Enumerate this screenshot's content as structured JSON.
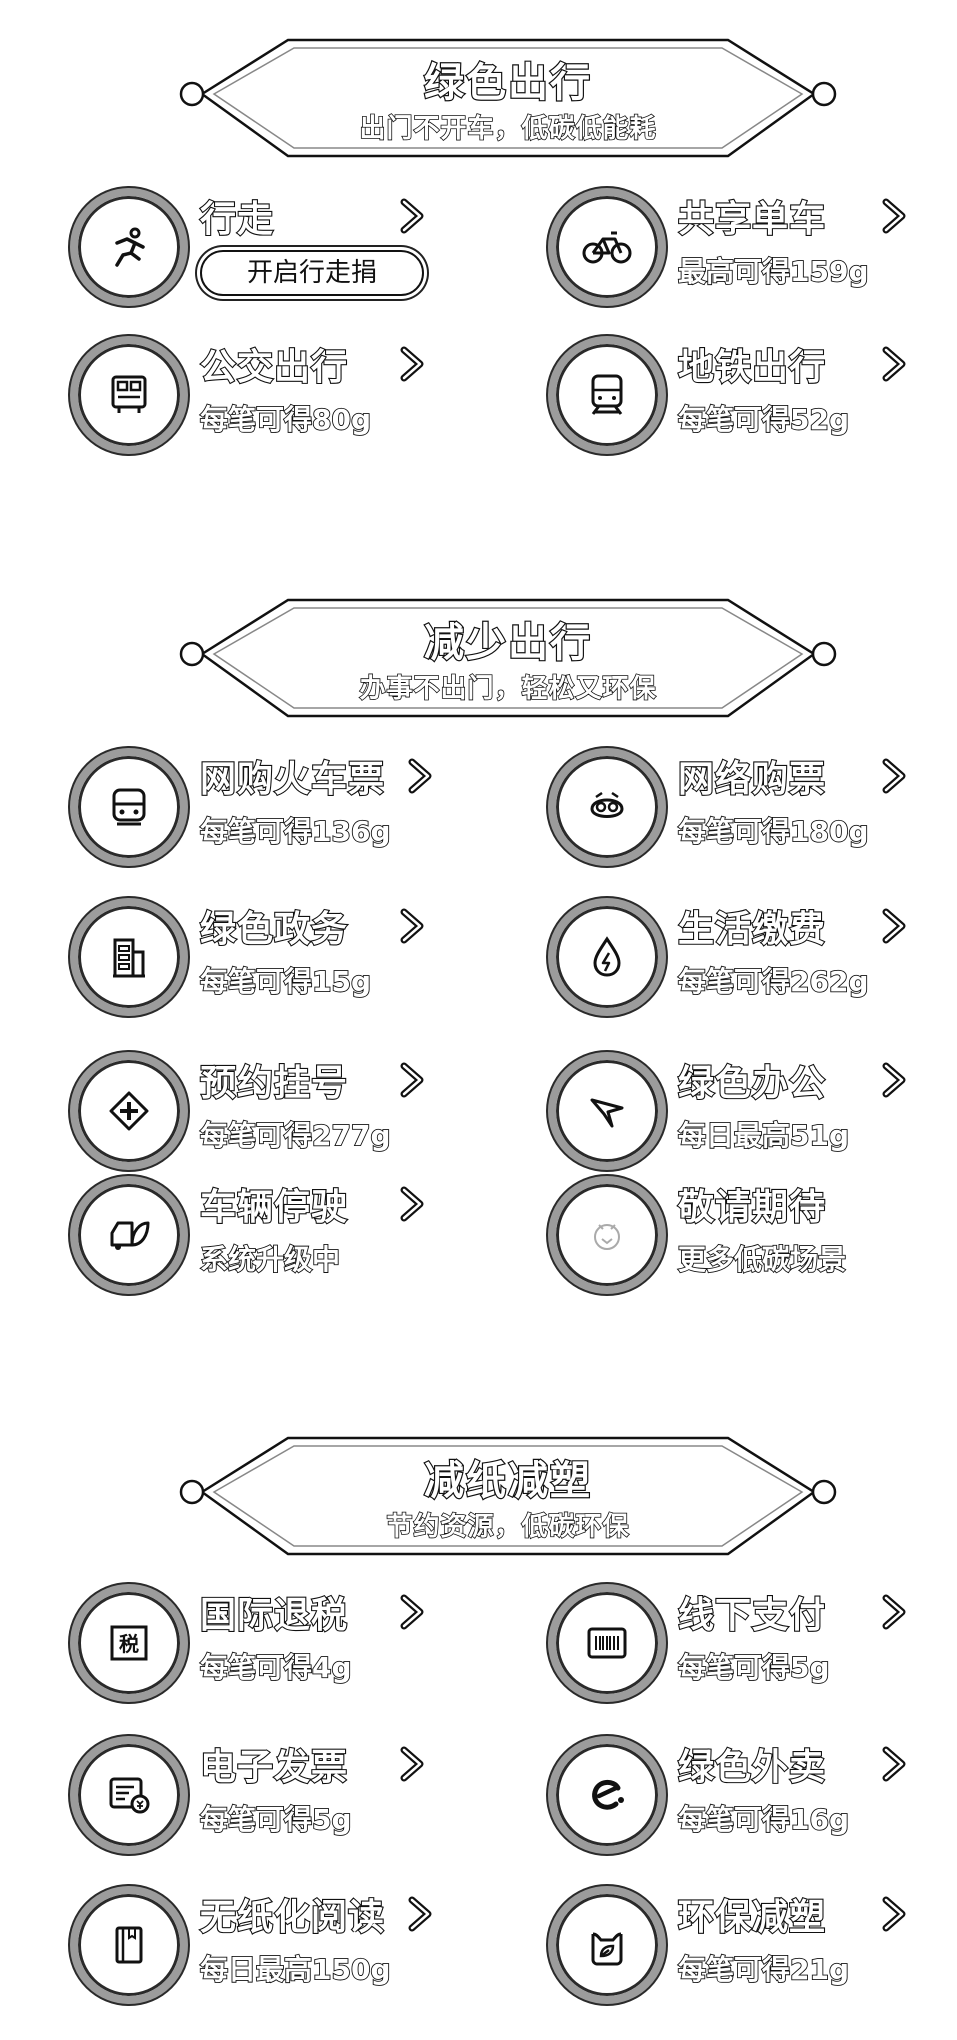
{
  "sections": [
    {
      "title": "绿色出行",
      "subtitle": "出门不开车，低碳低能耗",
      "items": [
        {
          "name": "行走",
          "sub": "",
          "button": "开启行走捐",
          "icon": "running-icon",
          "chevron": true
        },
        {
          "name": "共享单车",
          "sub": "最高可得159g",
          "icon": "bicycle-icon",
          "chevron": true
        },
        {
          "name": "公交出行",
          "sub": "每笔可得80g",
          "icon": "bus-icon",
          "chevron": true
        },
        {
          "name": "地铁出行",
          "sub": "每笔可得52g",
          "icon": "subway-icon",
          "chevron": true
        }
      ]
    },
    {
      "title": "减少出行",
      "subtitle": "办事不出门，轻松又环保",
      "items": [
        {
          "name": "网购火车票",
          "sub": "每笔可得136g",
          "icon": "train-icon",
          "chevron": true
        },
        {
          "name": "网络购票",
          "sub": "每笔可得180g",
          "icon": "ticket-mascot-icon",
          "chevron": true
        },
        {
          "name": "绿色政务",
          "sub": "每笔可得15g",
          "icon": "government-building-icon",
          "chevron": true
        },
        {
          "name": "生活缴费",
          "sub": "每笔可得262g",
          "icon": "utility-drop-icon",
          "chevron": true
        },
        {
          "name": "预约挂号",
          "sub": "每笔可得277g",
          "icon": "medical-cross-icon",
          "chevron": true
        },
        {
          "name": "绿色办公",
          "sub": "每日最高51g",
          "icon": "office-wing-icon",
          "chevron": true
        },
        {
          "name": "车辆停驶",
          "sub": "系统升级中",
          "icon": "car-leaf-icon",
          "chevron": true
        },
        {
          "name": "敬请期待",
          "sub": "更多低碳场景",
          "icon": "coming-soon-icon",
          "chevron": false
        }
      ]
    },
    {
      "title": "减纸减塑",
      "subtitle": "节约资源，低碳环保",
      "items": [
        {
          "name": "国际退税",
          "sub": "每笔可得4g",
          "icon": "tax-refund-icon",
          "icon_text": "税",
          "chevron": true
        },
        {
          "name": "线下支付",
          "sub": "每笔可得5g",
          "icon": "barcode-icon",
          "chevron": true
        },
        {
          "name": "电子发票",
          "sub": "每笔可得5g",
          "icon": "e-invoice-icon",
          "chevron": true
        },
        {
          "name": "绿色外卖",
          "sub": "每笔可得16g",
          "icon": "eleme-icon",
          "chevron": true
        },
        {
          "name": "无纸化阅读",
          "sub": "每日最高150g",
          "icon": "book-icon",
          "chevron": true
        },
        {
          "name": "环保减塑",
          "sub": "每笔可得21g",
          "icon": "eco-bag-icon",
          "chevron": true
        }
      ]
    }
  ]
}
